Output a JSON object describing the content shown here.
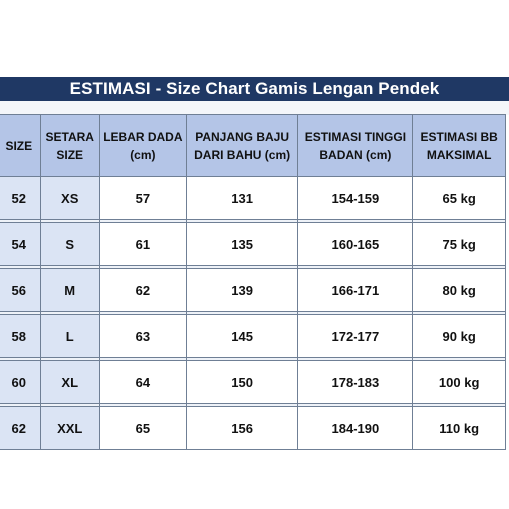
{
  "title": "ESTIMASI - Size Chart Gamis Lengan Pendek",
  "headers": {
    "size": "SIZE",
    "setara_1": "SETARA",
    "setara_2": "SIZE",
    "lebar_1": "LEBAR DADA",
    "lebar_2": "(cm)",
    "panjang_1": "PANJANG BAJU",
    "panjang_2": "DARI BAHU (cm)",
    "tinggi_1": "ESTIMASI TINGGI",
    "tinggi_2": "BADAN (cm)",
    "bb_1": "ESTIMASI BB",
    "bb_2": "MAKSIMAL"
  },
  "rows": [
    {
      "size": "52",
      "setara": "XS",
      "lebar": "57",
      "panjang": "131",
      "tinggi": "154-159",
      "bb": "65 kg"
    },
    {
      "size": "54",
      "setara": "S",
      "lebar": "61",
      "panjang": "135",
      "tinggi": "160-165",
      "bb": "75 kg"
    },
    {
      "size": "56",
      "setara": "M",
      "lebar": "62",
      "panjang": "139",
      "tinggi": "166-171",
      "bb": "80 kg"
    },
    {
      "size": "58",
      "setara": "L",
      "lebar": "63",
      "panjang": "145",
      "tinggi": "172-177",
      "bb": "90 kg"
    },
    {
      "size": "60",
      "setara": "XL",
      "lebar": "64",
      "panjang": "150",
      "tinggi": "178-183",
      "bb": "100 kg"
    },
    {
      "size": "62",
      "setara": "XXL",
      "lebar": "65",
      "panjang": "156",
      "tinggi": "184-190",
      "bb": "110 kg"
    }
  ],
  "colors": {
    "banner": "#1f3864",
    "header": "#b4c5e7",
    "size_col": "#dbe4f4"
  }
}
